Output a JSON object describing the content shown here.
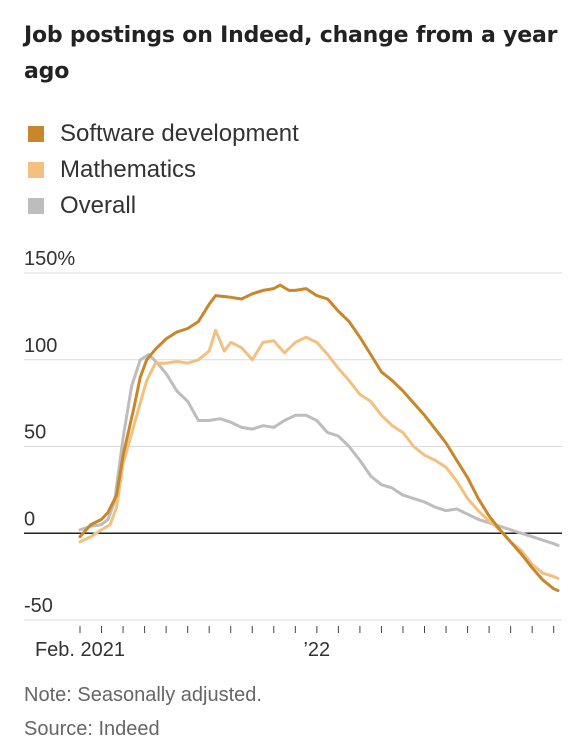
{
  "chart_data": {
    "type": "line",
    "title": "Job postings on Indeed, change from a year ago",
    "y_tick_labels": [
      "150%",
      "100",
      "50",
      "0",
      "-50"
    ],
    "y_ticks": [
      150,
      100,
      50,
      0,
      -50
    ],
    "ylim": [
      -50,
      150
    ],
    "x_tick_labels": [
      {
        "x": 0,
        "label": "Feb. 2021"
      },
      {
        "x": 11,
        "label": "’22"
      }
    ],
    "xlim": [
      0,
      22.2
    ],
    "grid": true,
    "legend_position": "top-left",
    "series": [
      {
        "name": "Software development",
        "color": "#c8872a",
        "points": [
          [
            0,
            -2
          ],
          [
            0.5,
            5
          ],
          [
            1.0,
            8
          ],
          [
            1.3,
            12
          ],
          [
            1.7,
            22
          ],
          [
            2.0,
            45
          ],
          [
            2.5,
            72
          ],
          [
            2.8,
            90
          ],
          [
            3.1,
            100
          ],
          [
            3.5,
            106
          ],
          [
            4.0,
            112
          ],
          [
            4.5,
            116
          ],
          [
            5.0,
            118
          ],
          [
            5.5,
            122
          ],
          [
            6.0,
            132
          ],
          [
            6.3,
            137
          ],
          [
            7.0,
            136
          ],
          [
            7.5,
            135
          ],
          [
            8.0,
            138
          ],
          [
            8.5,
            140
          ],
          [
            9.0,
            141
          ],
          [
            9.3,
            143
          ],
          [
            9.7,
            140
          ],
          [
            10.0,
            140
          ],
          [
            10.5,
            141
          ],
          [
            11.0,
            137
          ],
          [
            11.5,
            135
          ],
          [
            12.0,
            128
          ],
          [
            12.5,
            122
          ],
          [
            13.0,
            113
          ],
          [
            13.5,
            103
          ],
          [
            14.0,
            93
          ],
          [
            14.5,
            88
          ],
          [
            15.0,
            82
          ],
          [
            15.5,
            75
          ],
          [
            16.0,
            68
          ],
          [
            16.5,
            60
          ],
          [
            17.0,
            52
          ],
          [
            17.5,
            42
          ],
          [
            18.0,
            32
          ],
          [
            18.5,
            20
          ],
          [
            19.0,
            10
          ],
          [
            19.5,
            2
          ],
          [
            20.0,
            -5
          ],
          [
            20.5,
            -12
          ],
          [
            21.0,
            -20
          ],
          [
            21.5,
            -27
          ],
          [
            22.0,
            -32
          ],
          [
            22.2,
            -33
          ]
        ]
      },
      {
        "name": "Mathematics",
        "color": "#f4c080",
        "points": [
          [
            0,
            -5
          ],
          [
            0.5,
            -2
          ],
          [
            1.0,
            2
          ],
          [
            1.4,
            5
          ],
          [
            1.7,
            15
          ],
          [
            2.0,
            40
          ],
          [
            2.5,
            62
          ],
          [
            2.8,
            75
          ],
          [
            3.1,
            88
          ],
          [
            3.5,
            98
          ],
          [
            4.0,
            98
          ],
          [
            4.5,
            99
          ],
          [
            5.0,
            98
          ],
          [
            5.5,
            100
          ],
          [
            6.0,
            105
          ],
          [
            6.3,
            117
          ],
          [
            6.7,
            105
          ],
          [
            7.0,
            110
          ],
          [
            7.5,
            107
          ],
          [
            8.0,
            100
          ],
          [
            8.5,
            110
          ],
          [
            9.0,
            111
          ],
          [
            9.5,
            104
          ],
          [
            10.0,
            110
          ],
          [
            10.5,
            113
          ],
          [
            11.0,
            110
          ],
          [
            11.5,
            103
          ],
          [
            12.0,
            95
          ],
          [
            12.5,
            88
          ],
          [
            13.0,
            80
          ],
          [
            13.5,
            76
          ],
          [
            14.0,
            68
          ],
          [
            14.5,
            62
          ],
          [
            15.0,
            58
          ],
          [
            15.5,
            50
          ],
          [
            16.0,
            45
          ],
          [
            16.5,
            42
          ],
          [
            17.0,
            38
          ],
          [
            17.5,
            30
          ],
          [
            18.0,
            20
          ],
          [
            18.5,
            13
          ],
          [
            19.0,
            7
          ],
          [
            19.5,
            2
          ],
          [
            20.0,
            -5
          ],
          [
            20.5,
            -10
          ],
          [
            21.0,
            -18
          ],
          [
            21.5,
            -23
          ],
          [
            22.0,
            -25
          ],
          [
            22.2,
            -26
          ]
        ]
      },
      {
        "name": "Overall",
        "color": "#bdbdbd",
        "points": [
          [
            0,
            2
          ],
          [
            0.5,
            4
          ],
          [
            1.0,
            5
          ],
          [
            1.3,
            8
          ],
          [
            1.6,
            18
          ],
          [
            2.0,
            55
          ],
          [
            2.4,
            85
          ],
          [
            2.8,
            100
          ],
          [
            3.2,
            103
          ],
          [
            3.6,
            98
          ],
          [
            4.0,
            92
          ],
          [
            4.5,
            82
          ],
          [
            5.0,
            76
          ],
          [
            5.5,
            65
          ],
          [
            6.0,
            65
          ],
          [
            6.5,
            66
          ],
          [
            7.0,
            64
          ],
          [
            7.5,
            61
          ],
          [
            8.0,
            60
          ],
          [
            8.5,
            62
          ],
          [
            9.0,
            61
          ],
          [
            9.5,
            65
          ],
          [
            10.0,
            68
          ],
          [
            10.5,
            68
          ],
          [
            11.0,
            65
          ],
          [
            11.5,
            58
          ],
          [
            12.0,
            56
          ],
          [
            12.5,
            50
          ],
          [
            13.0,
            42
          ],
          [
            13.5,
            33
          ],
          [
            14.0,
            28
          ],
          [
            14.5,
            26
          ],
          [
            15.0,
            22
          ],
          [
            15.5,
            20
          ],
          [
            16.0,
            18
          ],
          [
            16.5,
            15
          ],
          [
            17.0,
            13
          ],
          [
            17.5,
            14
          ],
          [
            18.0,
            11
          ],
          [
            18.5,
            8
          ],
          [
            19.0,
            6
          ],
          [
            19.5,
            4
          ],
          [
            20.0,
            2
          ],
          [
            20.5,
            0
          ],
          [
            21.0,
            -2
          ],
          [
            21.5,
            -4
          ],
          [
            22.0,
            -6
          ],
          [
            22.2,
            -7
          ]
        ]
      }
    ],
    "notes": [
      "Note: Seasonally adjusted.",
      "Source: Indeed"
    ]
  }
}
